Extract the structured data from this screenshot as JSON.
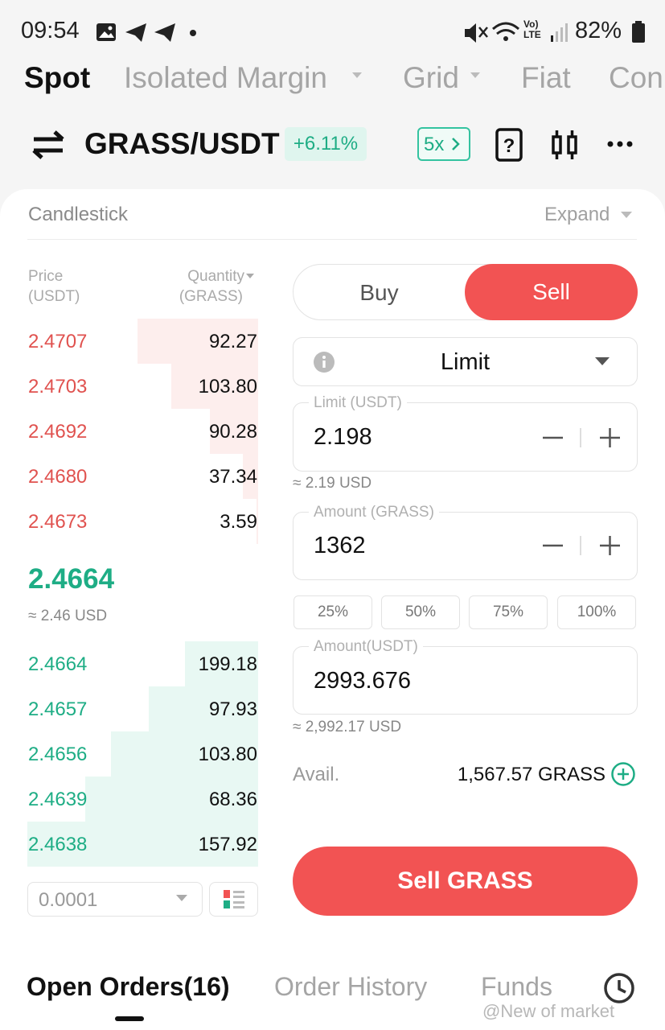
{
  "status_bar": {
    "time": "09:54",
    "volte": "Vo)",
    "lte": "LTE",
    "battery": "82%"
  },
  "tabs": [
    "Spot",
    "Isolated Margin",
    "Grid",
    "Fiat",
    "Con"
  ],
  "pair": {
    "symbol": "GRASS/USDT",
    "change": "+6.11%",
    "leverage": "5x"
  },
  "chart_bar": {
    "title": "Candlestick",
    "expand": "Expand"
  },
  "order_book": {
    "price_header": "Price",
    "price_unit": "(USDT)",
    "quantity_header": "Quantity",
    "quantity_unit": "(GRASS)",
    "asks": [
      {
        "price": "2.4707",
        "quantity": "92.27"
      },
      {
        "price": "2.4703",
        "quantity": "103.80"
      },
      {
        "price": "2.4692",
        "quantity": "90.28"
      },
      {
        "price": "2.4680",
        "quantity": "37.34"
      },
      {
        "price": "2.4673",
        "quantity": "3.59"
      }
    ],
    "last_price": "2.4664",
    "last_price_usd": "≈ 2.46 USD",
    "bids": [
      {
        "price": "2.4664",
        "quantity": "199.18"
      },
      {
        "price": "2.4657",
        "quantity": "97.93"
      },
      {
        "price": "2.4656",
        "quantity": "103.80"
      },
      {
        "price": "2.4639",
        "quantity": "68.36"
      },
      {
        "price": "2.4638",
        "quantity": "157.92"
      }
    ],
    "precision": "0.0001"
  },
  "order_form": {
    "buy": "Buy",
    "sell": "Sell",
    "order_type": "Limit",
    "limit_label": "Limit (USDT)",
    "limit_value": "2.198",
    "limit_approx": "≈ 2.19 USD",
    "amount_label": "Amount (GRASS)",
    "amount_value": "1362",
    "percentages": [
      "25%",
      "50%",
      "75%",
      "100%"
    ],
    "total_label": "Amount(USDT)",
    "total_value": "2993.676",
    "total_approx": "≈ 2,992.17 USD",
    "avail_label": "Avail.",
    "avail_value": "1,567.57 GRASS",
    "submit": "Sell GRASS"
  },
  "bottom_tabs": [
    "Open Orders(16)",
    "Order History",
    "Funds"
  ],
  "watermark": "@New of market"
}
